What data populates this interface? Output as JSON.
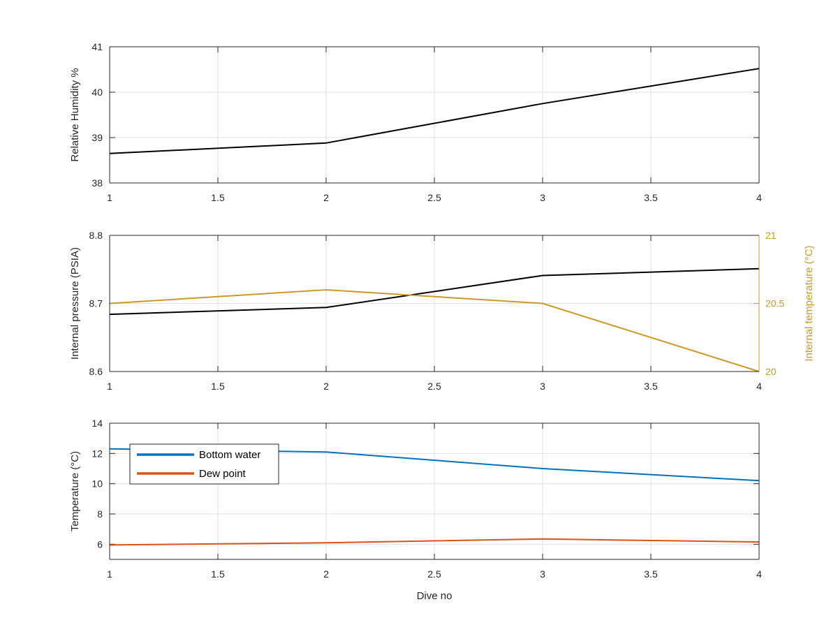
{
  "figure": {
    "colors": {
      "black": "#000000",
      "blue": "#0072bd",
      "orange": "#d95319",
      "gold": "#c89a2a",
      "axis": "#262626",
      "grid": "#dfdfdf"
    }
  },
  "chart_data": [
    {
      "type": "line",
      "ylabel": "Relative Humidity %",
      "xlim": [
        1,
        4
      ],
      "ylim": [
        38,
        41
      ],
      "xticks": [
        "1",
        "1.5",
        "2",
        "2.5",
        "3",
        "3.5",
        "4"
      ],
      "yticks": [
        "38",
        "39",
        "40",
        "41"
      ],
      "grid": true,
      "series": [
        {
          "x": [
            1,
            2,
            3,
            4
          ],
          "values": [
            38.65,
            38.88,
            39.75,
            40.52
          ],
          "color": "#000000"
        }
      ]
    },
    {
      "type": "line",
      "ylabel": "Internal pressure (PSIA)",
      "ylabel_right": "Internal temperature (°C)",
      "xlim": [
        1,
        4
      ],
      "ylim": [
        8.6,
        8.8
      ],
      "ylim_right": [
        20,
        21
      ],
      "xticks": [
        "1",
        "1.5",
        "2",
        "2.5",
        "3",
        "3.5",
        "4"
      ],
      "yticks": [
        "8.6",
        "8.7",
        "8.8"
      ],
      "yticks_right": [
        "20",
        "20.5",
        "21"
      ],
      "grid": true,
      "series": [
        {
          "axis": "left",
          "x": [
            1,
            2,
            3,
            4
          ],
          "values": [
            8.684,
            8.694,
            8.741,
            8.751
          ],
          "color": "#000000"
        },
        {
          "axis": "right",
          "x": [
            1,
            2,
            3,
            4
          ],
          "values": [
            20.5,
            20.6,
            20.5,
            20.0
          ],
          "color": "#c89a2a"
        }
      ]
    },
    {
      "type": "line",
      "ylabel": "Temperature (°C)",
      "xlabel": "Dive no",
      "xlim": [
        1,
        4
      ],
      "ylim": [
        5,
        14
      ],
      "xticks": [
        "1",
        "1.5",
        "2",
        "2.5",
        "3",
        "3.5",
        "4"
      ],
      "yticks": [
        "6",
        "8",
        "10",
        "12",
        "14"
      ],
      "grid": true,
      "legend": "top-left",
      "series": [
        {
          "name": "Bottom water",
          "x": [
            1,
            2,
            3,
            4
          ],
          "values": [
            12.3,
            12.1,
            11.0,
            10.2
          ],
          "color": "#0072bd"
        },
        {
          "name": "Dew point",
          "x": [
            1,
            2,
            3,
            4
          ],
          "values": [
            5.95,
            6.1,
            6.35,
            6.15
          ],
          "color": "#d95319"
        }
      ]
    }
  ]
}
